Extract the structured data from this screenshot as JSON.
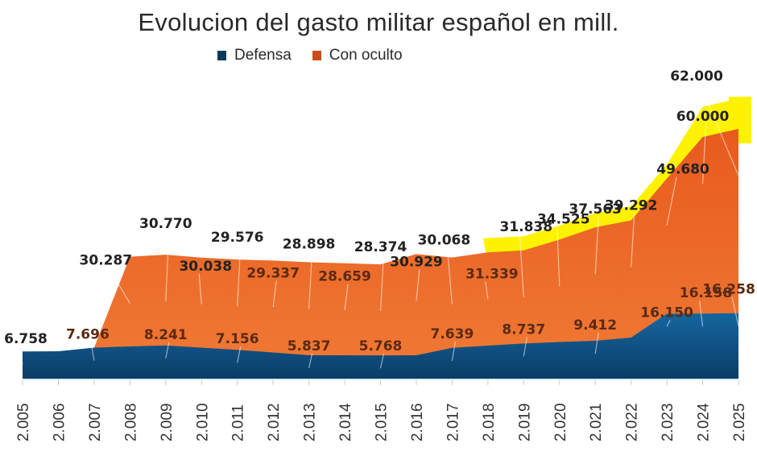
{
  "chart_data": {
    "type": "area",
    "title": "Evolucion del gasto militar  español  en mill.",
    "xlabel": "",
    "ylabel": "",
    "categories": [
      "2.005",
      "2.006",
      "2.007",
      "2.008",
      "2.009",
      "2.010",
      "2.011",
      "2.012",
      "2.013",
      "2.014",
      "2.015",
      "2.016",
      "2.017",
      "2.018",
      "2.019",
      "2.020",
      "2.021",
      "2.022",
      "2.023",
      "2.024",
      "2.025"
    ],
    "ylim": [
      0,
      64000
    ],
    "grid": false,
    "legend_position": "top-center",
    "series": [
      {
        "name": "Defensa",
        "color": "#0d4a78",
        "values": [
          6758,
          6800,
          7696,
          8000,
          8241,
          7700,
          7156,
          6500,
          5837,
          5800,
          5768,
          5800,
          7639,
          8200,
          8737,
          9100,
          9412,
          10200,
          16150,
          16158,
          16258
        ],
        "labels": [
          {
            "x": "2.005",
            "text": "6.758"
          },
          {
            "x": "2.007",
            "text": "7.696"
          },
          {
            "x": "2.009",
            "text": "8.241"
          },
          {
            "x": "2.011",
            "text": "7.156"
          },
          {
            "x": "2.013",
            "text": "5.837"
          },
          {
            "x": "2.015",
            "text": "5.768"
          },
          {
            "x": "2.017",
            "text": "7.639"
          },
          {
            "x": "2.019",
            "text": "8.737"
          },
          {
            "x": "2.021",
            "text": "9.412"
          },
          {
            "x": "2.023",
            "text": "16.150"
          },
          {
            "x": "2.024",
            "text": "16.158"
          },
          {
            "x": "2.025",
            "text": "16.258"
          }
        ]
      },
      {
        "name": "Con oculto",
        "color": "#e8642a",
        "values": [
          null,
          null,
          7696,
          30287,
          30770,
          30038,
          29576,
          29337,
          28898,
          28659,
          28374,
          30929,
          30068,
          31339,
          31838,
          34525,
          37563,
          39292,
          49680,
          60000,
          62000
        ],
        "labels": [
          {
            "x": "2.008",
            "text": "30.287"
          },
          {
            "x": "2.009",
            "text": "30.770"
          },
          {
            "x": "2.010",
            "text": "30.038"
          },
          {
            "x": "2.011",
            "text": "29.576"
          },
          {
            "x": "2.012",
            "text": "29.337"
          },
          {
            "x": "2.013",
            "text": "28.898"
          },
          {
            "x": "2.014",
            "text": "28.659"
          },
          {
            "x": "2.015",
            "text": "28.374"
          },
          {
            "x": "2.016",
            "text": "30.929"
          },
          {
            "x": "2.017",
            "text": "30.068"
          },
          {
            "x": "2.018",
            "text": "31.339"
          },
          {
            "x": "2.019",
            "text": "31.838"
          },
          {
            "x": "2.020",
            "text": "34.525"
          },
          {
            "x": "2.021",
            "text": "37.563"
          },
          {
            "x": "2.022",
            "text": "39.292"
          },
          {
            "x": "2.023",
            "text": "49.680"
          },
          {
            "x": "2.024",
            "text": "60.000"
          },
          {
            "x": "2.025",
            "text": "62.000"
          }
        ]
      }
    ],
    "highlight": {
      "name": "yellow-highlight",
      "color": "#fff200",
      "from": "2.018",
      "to": "2.025"
    }
  },
  "legend": {
    "items": [
      {
        "label": "Defensa",
        "color": "#0d3a5c"
      },
      {
        "label": "Con oculto",
        "color": "#c94f1c"
      }
    ]
  }
}
